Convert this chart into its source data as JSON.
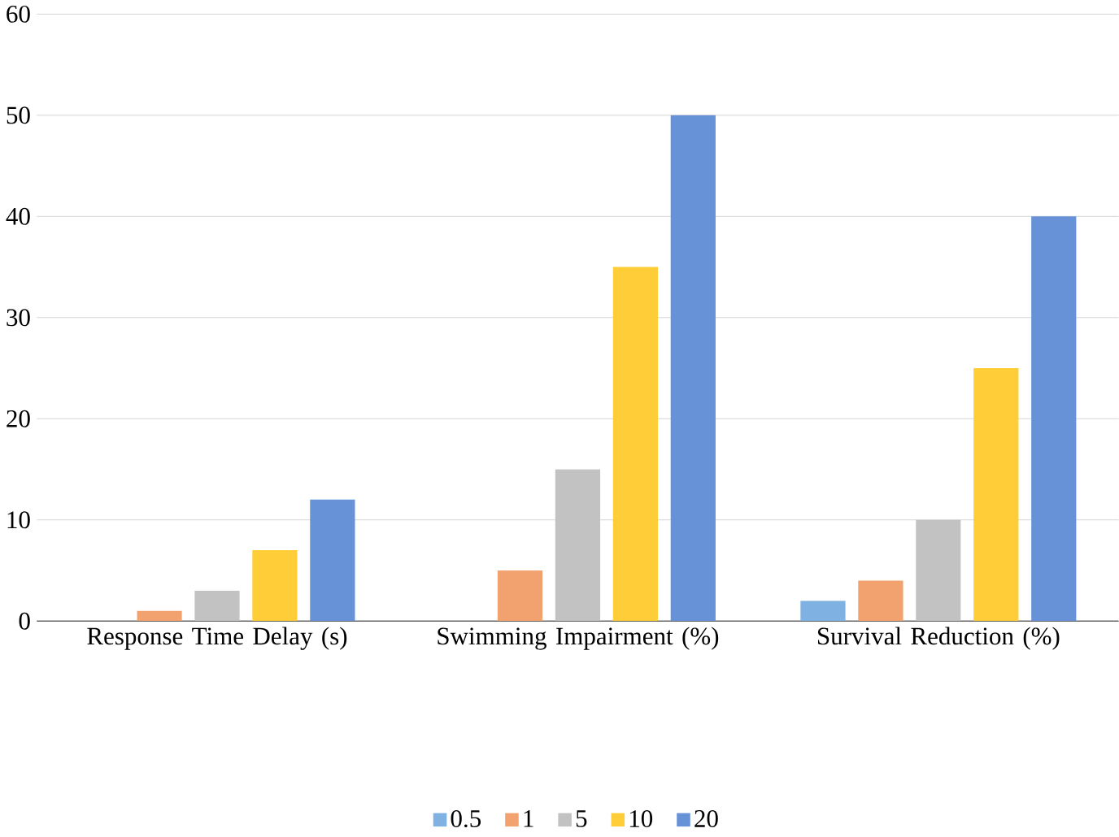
{
  "chart_data": {
    "type": "bar",
    "categories": [
      "Response Time Delay (s)",
      "Swimming Impairment (%)",
      "Survival Reduction (%)"
    ],
    "series": [
      {
        "name": "0.5",
        "color": "#7fb2e2",
        "values": [
          0,
          0,
          2
        ]
      },
      {
        "name": "1",
        "color": "#f2a26e",
        "values": [
          1,
          5,
          4
        ]
      },
      {
        "name": "5",
        "color": "#c2c2c2",
        "values": [
          3,
          15,
          10
        ]
      },
      {
        "name": "10",
        "color": "#ffcd37",
        "values": [
          7,
          35,
          25
        ]
      },
      {
        "name": "20",
        "color": "#6792d8",
        "values": [
          12,
          50,
          40
        ]
      }
    ],
    "ylim": [
      0,
      60
    ],
    "yticks": [
      0,
      10,
      20,
      30,
      40,
      50,
      60
    ],
    "grid": "y",
    "legend": "bottom"
  }
}
